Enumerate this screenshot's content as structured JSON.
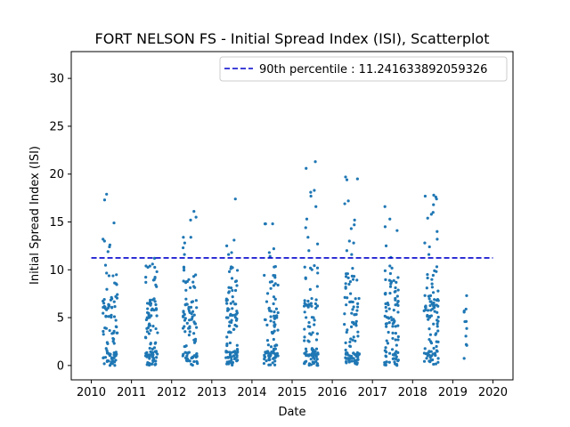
{
  "chart_data": {
    "type": "scatter",
    "title": "FORT NELSON FS - Initial Spread Index (ISI), Scatterplot",
    "xlabel": "Date",
    "ylabel": "Initial Spread Index (ISI)",
    "x_ticks": [
      "2010",
      "2011",
      "2012",
      "2013",
      "2014",
      "2015",
      "2016",
      "2017",
      "2018",
      "2019",
      "2020"
    ],
    "y_ticks": [
      "0",
      "5",
      "10",
      "15",
      "20",
      "25",
      "30"
    ],
    "xlim": [
      2009.5,
      2020.5
    ],
    "ylim": [
      -1.5,
      32.8
    ],
    "grid": false,
    "legend_position": "top-right",
    "point_color": "#1f77b4",
    "reference_line": {
      "label": "90th percentile : 11.241633892059326",
      "value": 11.241633892059326,
      "color": "#0000cc",
      "style": "dashed"
    },
    "series": [
      {
        "season_groups": [
          {
            "year_start": 2010.28,
            "year_end": 2010.65,
            "max": 17.9,
            "highs": [
              17.9,
              17.3,
              14.9,
              13.2,
              13.0,
              12.6,
              12.4,
              11.9
            ]
          },
          {
            "year_start": 2011.35,
            "year_end": 2011.65,
            "max": 11.2,
            "highs": [
              11.2,
              10.6,
              10.4,
              9.8
            ]
          },
          {
            "year_start": 2012.28,
            "year_end": 2012.65,
            "max": 16.1,
            "highs": [
              16.1,
              15.5,
              15.2,
              13.4,
              13.4,
              12.8,
              12.3,
              11.6
            ]
          },
          {
            "year_start": 2013.35,
            "year_end": 2013.65,
            "max": 17.4,
            "highs": [
              17.4,
              13.1,
              12.5,
              11.8,
              11.6
            ]
          },
          {
            "year_start": 2014.3,
            "year_end": 2014.65,
            "max": 14.8,
            "highs": [
              14.8,
              14.8,
              14.8,
              12.2,
              11.8,
              11.4
            ]
          },
          {
            "year_start": 2015.3,
            "year_end": 2015.65,
            "max": 21.3,
            "highs": [
              21.3,
              20.6,
              18.3,
              18.1,
              17.7,
              16.6,
              15.3,
              14.4,
              13.4,
              12.7,
              12.0
            ]
          },
          {
            "year_start": 2016.3,
            "year_end": 2016.68,
            "max": 19.7,
            "highs": [
              19.7,
              19.5,
              19.4,
              17.2,
              16.9,
              15.2,
              14.7,
              14.3,
              13.0,
              12.8,
              12.0,
              11.6
            ]
          },
          {
            "year_start": 2017.3,
            "year_end": 2017.65,
            "max": 16.6,
            "highs": [
              16.6,
              15.3,
              14.5,
              14.1,
              12.5,
              11.3
            ]
          },
          {
            "year_start": 2018.28,
            "year_end": 2018.65,
            "max": 17.8,
            "highs": [
              17.8,
              17.7,
              17.6,
              17.4,
              16.8,
              16.0,
              15.8,
              15.4,
              14.0,
              13.2,
              12.8,
              12.4,
              11.6
            ]
          },
          {
            "year_start": 2019.28,
            "year_end": 2019.35,
            "max": 7.3,
            "highs": [
              7.3,
              5.7,
              4.6,
              2.2,
              2.1
            ]
          }
        ]
      }
    ]
  }
}
